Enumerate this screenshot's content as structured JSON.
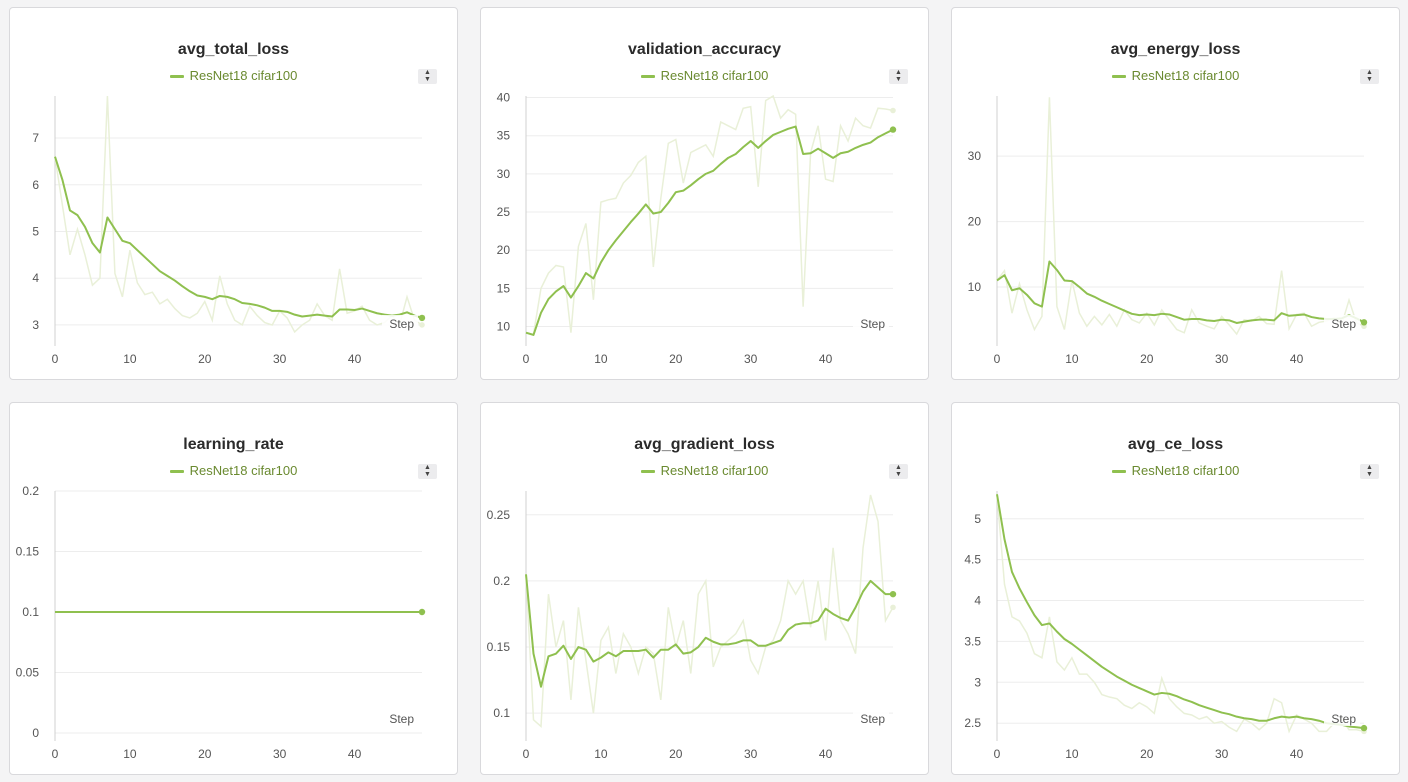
{
  "colors": {
    "series": "#8fc04f",
    "raw": "#e9f0d8",
    "legend_text": "#6a8a30"
  },
  "icons": {
    "sort": "sort-arrows-icon"
  },
  "chart_data": [
    {
      "id": "avg_total_loss",
      "type": "line",
      "title": "avg_total_loss",
      "legend": "ResNet18 cifar100",
      "xlabel": "Step",
      "xlim": [
        0,
        49
      ],
      "ylim": [
        2.72,
        7.9
      ],
      "xticks": [
        0,
        10,
        20,
        30,
        40
      ],
      "yticks": [
        3,
        4,
        5,
        6,
        7
      ],
      "ytick_labels": [
        "3",
        "4",
        "5",
        "6",
        "7"
      ],
      "raw": [
        6.6,
        5.55,
        4.5,
        5.05,
        4.5,
        3.85,
        4.0,
        7.9,
        4.1,
        3.6,
        4.6,
        3.9,
        3.65,
        3.7,
        3.45,
        3.55,
        3.35,
        3.2,
        3.15,
        3.25,
        3.5,
        3.1,
        4.05,
        3.45,
        3.1,
        3.0,
        3.4,
        3.2,
        3.05,
        3.0,
        3.3,
        3.15,
        2.85,
        3.0,
        3.1,
        3.45,
        3.2,
        3.1,
        4.2,
        3.25,
        3.3,
        3.4,
        3.1,
        3.0,
        3.05,
        3.2,
        3.0,
        3.6,
        3.1,
        3.0
      ],
      "smoothed": [
        6.6,
        6.1,
        5.45,
        5.35,
        5.1,
        4.75,
        4.55,
        5.3,
        5.05,
        4.8,
        4.75,
        4.6,
        4.45,
        4.3,
        4.15,
        4.05,
        3.95,
        3.83,
        3.72,
        3.63,
        3.6,
        3.55,
        3.62,
        3.6,
        3.55,
        3.47,
        3.45,
        3.42,
        3.37,
        3.3,
        3.3,
        3.28,
        3.22,
        3.18,
        3.2,
        3.22,
        3.2,
        3.18,
        3.33,
        3.33,
        3.32,
        3.35,
        3.3,
        3.25,
        3.22,
        3.2,
        3.22,
        3.27,
        3.2,
        3.15
      ]
    },
    {
      "id": "validation_accuracy",
      "type": "line",
      "title": "validation_accuracy",
      "legend": "ResNet18 cifar100",
      "xlabel": "Step",
      "xlim": [
        0,
        49
      ],
      "ylim": [
        8.5,
        40.2
      ],
      "xticks": [
        0,
        10,
        20,
        30,
        40
      ],
      "yticks": [
        10,
        15,
        20,
        25,
        30,
        35,
        40
      ],
      "ytick_labels": [
        "10",
        "15",
        "20",
        "25",
        "30",
        "35",
        "40"
      ],
      "raw": [
        9.2,
        9.0,
        15.0,
        17.0,
        18.0,
        17.8,
        9.2,
        20.5,
        23.5,
        13.5,
        26.3,
        26.6,
        26.8,
        28.8,
        29.8,
        31.5,
        32.3,
        17.8,
        26.8,
        34.0,
        34.5,
        28.8,
        32.8,
        33.3,
        33.8,
        32.3,
        36.8,
        36.3,
        35.8,
        38.6,
        38.8,
        28.3,
        39.6,
        40.2,
        37.3,
        38.4,
        37.8,
        12.6,
        32.8,
        36.3,
        29.3,
        29.0,
        36.3,
        34.3,
        37.3,
        36.3,
        36.0,
        38.6,
        38.5,
        38.3
      ],
      "smoothed": [
        9.2,
        8.9,
        11.8,
        13.6,
        14.6,
        15.3,
        13.8,
        15.3,
        17.0,
        16.3,
        18.4,
        20.0,
        21.3,
        22.5,
        23.7,
        24.8,
        26.0,
        24.8,
        25.0,
        26.2,
        27.6,
        27.8,
        28.5,
        29.3,
        30.0,
        30.4,
        31.3,
        32.1,
        32.6,
        33.5,
        34.3,
        33.4,
        34.3,
        35.1,
        35.5,
        35.9,
        36.2,
        32.6,
        32.7,
        33.3,
        32.7,
        32.1,
        32.7,
        32.9,
        33.4,
        33.8,
        34.1,
        34.8,
        35.3,
        35.8
      ]
    },
    {
      "id": "avg_energy_loss",
      "type": "line",
      "title": "avg_energy_loss",
      "legend": "ResNet18 cifar100",
      "xlabel": "Step",
      "xlim": [
        0,
        49
      ],
      "ylim": [
        2.2,
        39.2
      ],
      "xticks": [
        0,
        10,
        20,
        30,
        40
      ],
      "yticks": [
        10,
        20,
        30
      ],
      "ytick_labels": [
        "10",
        "20",
        "30"
      ],
      "raw": [
        11,
        12.5,
        6,
        10.5,
        6.5,
        3.5,
        5.5,
        39,
        7,
        3.5,
        11,
        6,
        4,
        5.5,
        4.2,
        5.8,
        4.0,
        6.5,
        5.0,
        4.5,
        6.0,
        4.2,
        6.5,
        5.0,
        3.5,
        3.0,
        6.5,
        4.5,
        4.0,
        3.6,
        5.5,
        4.2,
        2.8,
        5.0,
        4.8,
        5.5,
        4.4,
        4.3,
        12.5,
        3.6,
        5.8,
        6.0,
        4.0,
        4.6,
        4.8,
        5.3,
        4.2,
        8.0,
        4.5,
        4.0
      ],
      "smoothed": [
        11,
        11.8,
        9.5,
        9.8,
        8.8,
        7.5,
        7.0,
        13.9,
        12.6,
        11,
        10.9,
        10,
        9,
        8.5,
        7.9,
        7.4,
        6.9,
        6.4,
        5.9,
        5.7,
        5.8,
        5.7,
        5.9,
        5.8,
        5.4,
        5.0,
        5.1,
        5.1,
        4.9,
        4.8,
        5.0,
        4.9,
        4.5,
        4.7,
        4.9,
        5.0,
        5.0,
        4.9,
        6.0,
        5.6,
        5.7,
        5.8,
        5.4,
        5.2,
        5.1,
        5.1,
        5.2,
        5.7,
        5.2,
        4.6
      ]
    },
    {
      "id": "learning_rate",
      "type": "line",
      "title": "learning_rate",
      "legend": "ResNet18 cifar100",
      "xlabel": "Step",
      "xlim": [
        0,
        49
      ],
      "ylim": [
        0,
        0.2
      ],
      "xticks": [
        0,
        10,
        20,
        30,
        40
      ],
      "yticks": [
        0,
        0.05,
        0.1,
        0.15,
        0.2
      ],
      "ytick_labels": [
        "0",
        "0.05",
        "0.1",
        "0.15",
        "0.2"
      ],
      "raw": [
        0.1,
        0.1,
        0.1,
        0.1,
        0.1,
        0.1,
        0.1,
        0.1,
        0.1,
        0.1,
        0.1,
        0.1,
        0.1,
        0.1,
        0.1,
        0.1,
        0.1,
        0.1,
        0.1,
        0.1,
        0.1,
        0.1,
        0.1,
        0.1,
        0.1,
        0.1,
        0.1,
        0.1,
        0.1,
        0.1,
        0.1,
        0.1,
        0.1,
        0.1,
        0.1,
        0.1,
        0.1,
        0.1,
        0.1,
        0.1,
        0.1,
        0.1,
        0.1,
        0.1,
        0.1,
        0.1,
        0.1,
        0.1,
        0.1,
        0.1
      ],
      "smoothed": [
        0.1,
        0.1,
        0.1,
        0.1,
        0.1,
        0.1,
        0.1,
        0.1,
        0.1,
        0.1,
        0.1,
        0.1,
        0.1,
        0.1,
        0.1,
        0.1,
        0.1,
        0.1,
        0.1,
        0.1,
        0.1,
        0.1,
        0.1,
        0.1,
        0.1,
        0.1,
        0.1,
        0.1,
        0.1,
        0.1,
        0.1,
        0.1,
        0.1,
        0.1,
        0.1,
        0.1,
        0.1,
        0.1,
        0.1,
        0.1,
        0.1,
        0.1,
        0.1,
        0.1,
        0.1,
        0.1,
        0.1,
        0.1,
        0.1,
        0.1
      ]
    },
    {
      "id": "avg_gradient_loss",
      "type": "line",
      "title": "avg_gradient_loss",
      "legend": "ResNet18 cifar100",
      "xlabel": "Step",
      "xlim": [
        0,
        49
      ],
      "ylim": [
        0.085,
        0.268
      ],
      "xticks": [
        0,
        10,
        20,
        30,
        40
      ],
      "yticks": [
        0.1,
        0.15,
        0.2,
        0.25
      ],
      "ytick_labels": [
        "0.1",
        "0.15",
        "0.2",
        "0.25"
      ],
      "raw": [
        0.205,
        0.095,
        0.09,
        0.19,
        0.15,
        0.17,
        0.11,
        0.18,
        0.14,
        0.1,
        0.155,
        0.165,
        0.13,
        0.16,
        0.15,
        0.13,
        0.15,
        0.145,
        0.11,
        0.18,
        0.15,
        0.17,
        0.13,
        0.19,
        0.2,
        0.135,
        0.15,
        0.155,
        0.16,
        0.17,
        0.14,
        0.13,
        0.15,
        0.155,
        0.17,
        0.2,
        0.19,
        0.2,
        0.165,
        0.2,
        0.155,
        0.225,
        0.17,
        0.16,
        0.145,
        0.225,
        0.265,
        0.245,
        0.17,
        0.18
      ],
      "smoothed": [
        0.205,
        0.145,
        0.12,
        0.143,
        0.145,
        0.151,
        0.141,
        0.15,
        0.148,
        0.139,
        0.142,
        0.146,
        0.143,
        0.147,
        0.147,
        0.147,
        0.148,
        0.142,
        0.148,
        0.148,
        0.152,
        0.145,
        0.146,
        0.15,
        0.157,
        0.154,
        0.152,
        0.152,
        0.153,
        0.155,
        0.155,
        0.151,
        0.151,
        0.153,
        0.155,
        0.163,
        0.167,
        0.168,
        0.168,
        0.17,
        0.179,
        0.175,
        0.172,
        0.17,
        0.18,
        0.192,
        0.2,
        0.195,
        0.19,
        0.19
      ]
    },
    {
      "id": "avg_ce_loss",
      "type": "line",
      "title": "avg_ce_loss",
      "legend": "ResNet18 cifar100",
      "xlabel": "Step",
      "xlim": [
        0,
        49
      ],
      "ylim": [
        2.38,
        5.34
      ],
      "xticks": [
        0,
        10,
        20,
        30,
        40
      ],
      "yticks": [
        2.5,
        3,
        3.5,
        4,
        4.5,
        5
      ],
      "ytick_labels": [
        "2.5",
        "3",
        "3.5",
        "4",
        "4.5",
        "5"
      ],
      "raw": [
        5.3,
        4.2,
        3.8,
        3.75,
        3.6,
        3.35,
        3.3,
        3.8,
        3.25,
        3.15,
        3.3,
        3.1,
        3.1,
        3.0,
        2.85,
        2.82,
        2.8,
        2.72,
        2.68,
        2.75,
        2.7,
        2.62,
        3.05,
        2.8,
        2.7,
        2.62,
        2.6,
        2.55,
        2.58,
        2.5,
        2.52,
        2.45,
        2.4,
        2.55,
        2.5,
        2.42,
        2.5,
        2.8,
        2.75,
        2.4,
        2.6,
        2.55,
        2.5,
        2.4,
        2.4,
        2.5,
        2.55,
        2.42,
        2.42,
        2.4
      ],
      "smoothed": [
        5.3,
        4.75,
        4.35,
        4.15,
        3.98,
        3.82,
        3.7,
        3.72,
        3.62,
        3.53,
        3.47,
        3.4,
        3.33,
        3.26,
        3.19,
        3.13,
        3.07,
        3.02,
        2.97,
        2.93,
        2.89,
        2.85,
        2.87,
        2.86,
        2.83,
        2.79,
        2.76,
        2.72,
        2.69,
        2.66,
        2.63,
        2.61,
        2.58,
        2.56,
        2.55,
        2.53,
        2.53,
        2.56,
        2.58,
        2.57,
        2.58,
        2.56,
        2.55,
        2.53,
        2.5,
        2.49,
        2.48,
        2.46,
        2.45,
        2.44
      ]
    }
  ]
}
